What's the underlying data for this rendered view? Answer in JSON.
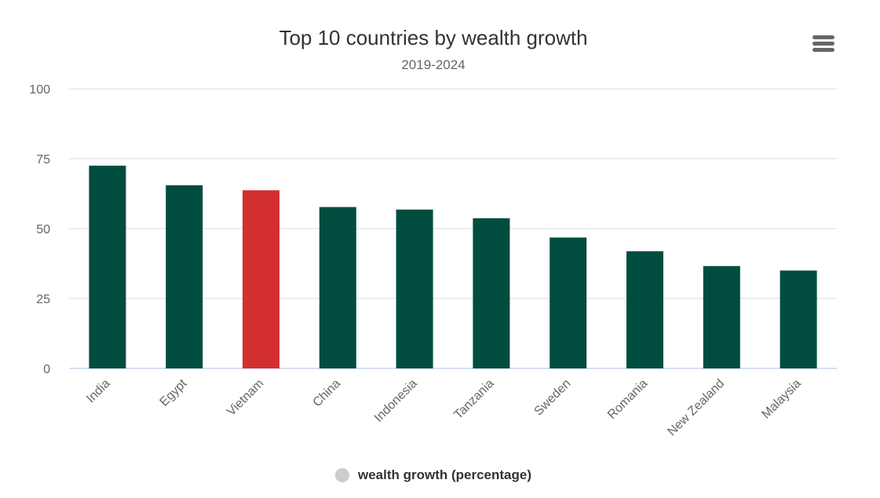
{
  "chart_data": {
    "type": "bar",
    "title": "Top 10 countries by wealth growth",
    "subtitle": "2019-2024",
    "categories": [
      "India",
      "Egypt",
      "Vietnam",
      "China",
      "Indonesia",
      "Tanzania",
      "Sweden",
      "Romania",
      "New Zealand",
      "Malaysia"
    ],
    "series": [
      {
        "name": "wealth growth (percentage)",
        "values": [
          72.5,
          65.5,
          63.7,
          57.7,
          56.8,
          53.7,
          46.8,
          41.9,
          36.6,
          35.0
        ]
      }
    ],
    "ylim": [
      0,
      100
    ],
    "yticks": [
      0,
      25,
      50,
      75,
      100
    ],
    "grid": true,
    "legend": "bottom-center",
    "colors": {
      "bar": "#004d40",
      "highlight": "#d32f2f"
    },
    "highlight_category": "Vietnam"
  },
  "legend": {
    "label": "wealth growth (percentage)"
  },
  "icons": {
    "menu": "hamburger-menu-icon"
  }
}
